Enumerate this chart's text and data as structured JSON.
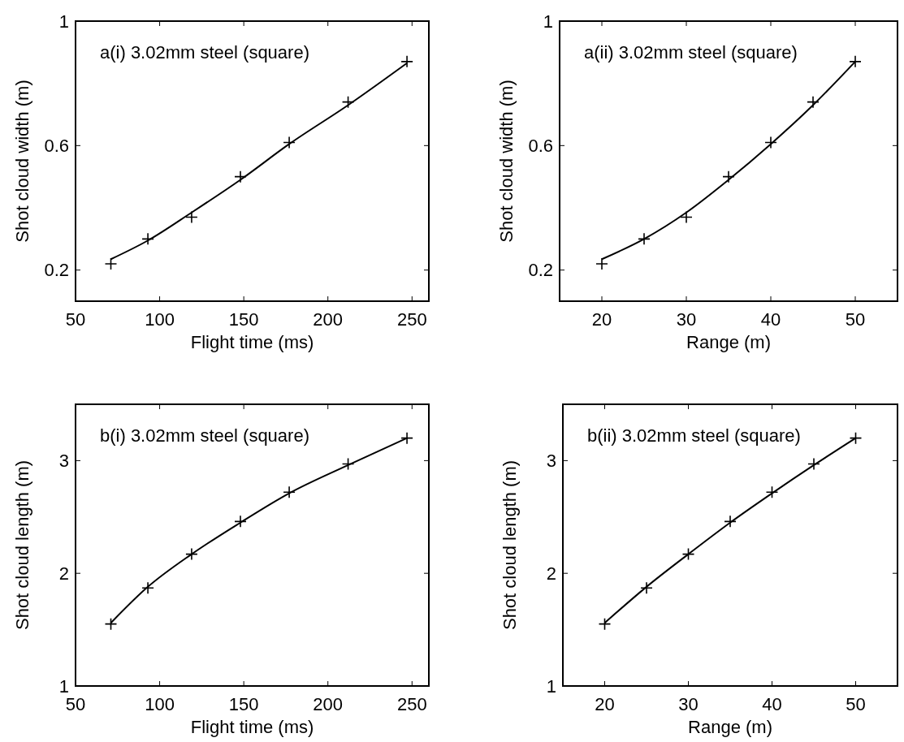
{
  "chart_data": [
    {
      "type": "scatter",
      "title": "a(i) 3.02mm steel (square)",
      "xlabel": "Flight time (ms)",
      "ylabel": "Shot cloud width (m)",
      "xlim": [
        50,
        260
      ],
      "xticks": [
        50,
        100,
        150,
        200,
        250
      ],
      "ylim": [
        0.1,
        1
      ],
      "yticks": [
        0.2,
        0.6,
        1
      ],
      "x": [
        71,
        93,
        119,
        148,
        177,
        212,
        247
      ],
      "series": [
        {
          "color": "#000000",
          "marker": "cross",
          "values": [
            0.22,
            0.3,
            0.37,
            0.5,
            0.61,
            0.74,
            0.87
          ]
        },
        {
          "type": "line",
          "color": "#000000",
          "marker": "none",
          "x": [
            71,
            93,
            119,
            148,
            177,
            212,
            247
          ],
          "values": [
            0.235,
            0.295,
            0.385,
            0.49,
            0.605,
            0.73,
            0.865
          ]
        }
      ]
    },
    {
      "type": "scatter",
      "title": "a(ii) 3.02mm steel (square)",
      "xlabel": "Range (m)",
      "ylabel": "Shot cloud width (m)",
      "xlim": [
        15,
        55
      ],
      "xticks": [
        20,
        30,
        40,
        50
      ],
      "ylim": [
        0.1,
        1
      ],
      "yticks": [
        0.2,
        0.6,
        1
      ],
      "x": [
        20,
        25,
        30,
        35,
        40,
        45,
        50
      ],
      "series": [
        {
          "color": "#000000",
          "marker": "cross",
          "values": [
            0.22,
            0.3,
            0.37,
            0.5,
            0.61,
            0.74,
            0.87
          ]
        },
        {
          "type": "line",
          "color": "#000000",
          "marker": "none",
          "x": [
            20,
            25,
            30,
            35,
            40,
            45,
            50
          ],
          "values": [
            0.235,
            0.3,
            0.385,
            0.49,
            0.605,
            0.73,
            0.87
          ]
        }
      ]
    },
    {
      "type": "scatter",
      "title": "b(i) 3.02mm steel (square)",
      "xlabel": "Flight time (ms)",
      "ylabel": "Shot cloud length (m)",
      "xlim": [
        50,
        260
      ],
      "xticks": [
        50,
        100,
        150,
        200,
        250
      ],
      "ylim": [
        1,
        3.5
      ],
      "yticks": [
        1,
        2,
        3
      ],
      "x": [
        71,
        93,
        119,
        148,
        177,
        212,
        247
      ],
      "series": [
        {
          "color": "#000000",
          "marker": "cross",
          "values": [
            1.55,
            1.87,
            2.17,
            2.46,
            2.72,
            2.97,
            3.2
          ]
        },
        {
          "type": "line",
          "color": "#000000",
          "marker": "none",
          "x": [
            71,
            93,
            119,
            148,
            177,
            212,
            247
          ],
          "values": [
            1.56,
            1.88,
            2.17,
            2.45,
            2.71,
            2.96,
            3.2
          ]
        }
      ]
    },
    {
      "type": "scatter",
      "title": "b(ii) 3.02mm steel (square)",
      "xlabel": "Range (m)",
      "ylabel": "Shot cloud length (m)",
      "xlim": [
        15,
        55
      ],
      "xticks": [
        20,
        30,
        40,
        50
      ],
      "ylim": [
        1,
        3.5
      ],
      "yticks": [
        1,
        2,
        3
      ],
      "x": [
        20,
        25,
        30,
        35,
        40,
        45,
        50
      ],
      "series": [
        {
          "color": "#000000",
          "marker": "cross",
          "values": [
            1.55,
            1.87,
            2.17,
            2.46,
            2.72,
            2.97,
            3.2
          ]
        },
        {
          "type": "line",
          "color": "#000000",
          "marker": "none",
          "x": [
            20,
            25,
            30,
            35,
            40,
            45,
            50
          ],
          "values": [
            1.56,
            1.88,
            2.17,
            2.45,
            2.71,
            2.96,
            3.2
          ]
        }
      ]
    }
  ]
}
